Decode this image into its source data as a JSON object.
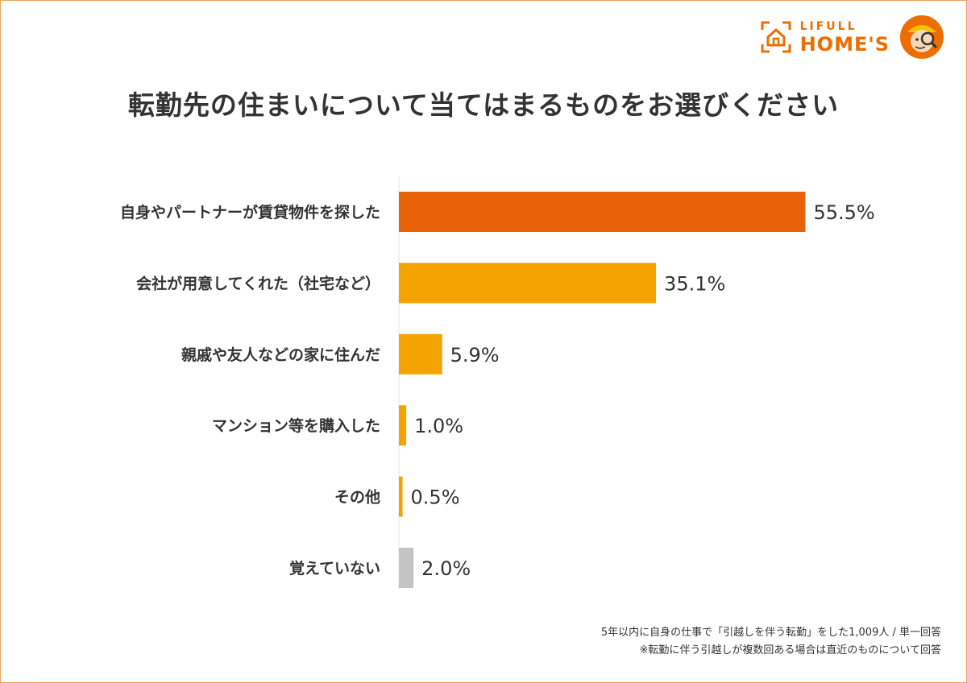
{
  "brand": {
    "top": "LIFULL",
    "name": "HOME'S",
    "color": "#ed6d00"
  },
  "chart_data": {
    "type": "bar",
    "orientation": "horizontal",
    "title": "転勤先の住まいについて当てはまるものをお選びください",
    "categories": [
      "自身やパートナーが賃貸物件を探した",
      "会社が用意してくれた（社宅など）",
      "親戚や友人などの家に住んだ",
      "マンション等を購入した",
      "その他",
      "覚えていない"
    ],
    "values": [
      55.5,
      35.1,
      5.9,
      1.0,
      0.5,
      2.0
    ],
    "value_labels": [
      "55.5%",
      "35.1%",
      "5.9%",
      "1.0%",
      "0.5%",
      "2.0%"
    ],
    "colors": [
      "#e8620a",
      "#f5a300",
      "#f5a300",
      "#f5a300",
      "#f5a300",
      "#c4c4c4"
    ],
    "xlim": [
      0,
      100
    ],
    "unit": "%",
    "grid": false,
    "legend": "none"
  },
  "notes": {
    "line1": "5年以内に自身の仕事で「引越しを伴う転勤」をした1,009人 / 単一回答",
    "line2": "※転勤に伴う引越しが複数回ある場合は直近のものについて回答"
  }
}
